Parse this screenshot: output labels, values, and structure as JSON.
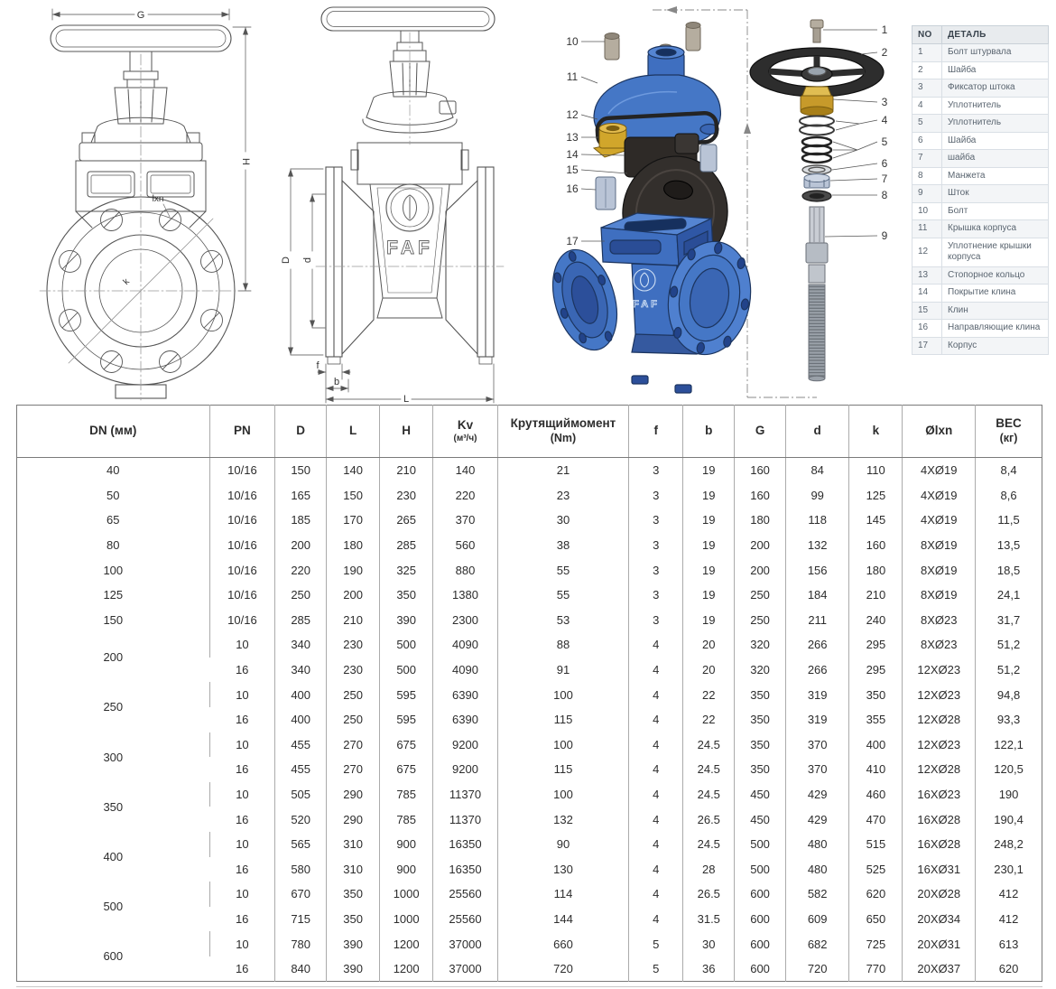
{
  "drawings": {
    "front": {
      "labels": {
        "g": "G",
        "h": "H",
        "lxn": "lxn",
        "k": "k"
      }
    },
    "side": {
      "labels": {
        "d_outer": "D",
        "d_inner": "d",
        "f": "f",
        "b": "b",
        "l": "L"
      },
      "logo": "FAF"
    }
  },
  "exploded": {
    "logo": "FAF",
    "callouts_left": [
      "10",
      "11",
      "12",
      "13",
      "14",
      "15",
      "16",
      "17"
    ],
    "callouts_right": [
      "1",
      "2",
      "3",
      "4",
      "5",
      "6",
      "7",
      "8",
      "9"
    ],
    "colors": {
      "body_blue": "#4577c6",
      "body_blue_dark": "#2f57a5",
      "outline_navy": "#1c3560",
      "handwheel_black": "#2d2d2d",
      "brass": "#c79a2a",
      "steel": "#b5ad9f",
      "silver_blue": "#b9c4d6"
    }
  },
  "parts_table": {
    "headers": [
      "NO",
      "ДЕТАЛЬ"
    ],
    "rows": [
      [
        "1",
        "Болт штурвала"
      ],
      [
        "2",
        "Шайба"
      ],
      [
        "3",
        "Фиксатор штока"
      ],
      [
        "4",
        "Уплотнитель"
      ],
      [
        "5",
        "Уплотнитель"
      ],
      [
        "6",
        "Шайба"
      ],
      [
        "7",
        "шайба"
      ],
      [
        "8",
        "Манжета"
      ],
      [
        "9",
        "Шток"
      ],
      [
        "10",
        "Болт"
      ],
      [
        "11",
        "Крышка корпуса"
      ],
      [
        "12",
        "Уплотнение крышки корпуса"
      ],
      [
        "13",
        "Стопорное кольцо"
      ],
      [
        "14",
        "Покрытие клина"
      ],
      [
        "15",
        "Клин"
      ],
      [
        "16",
        "Направляющие клина"
      ],
      [
        "17",
        "Корпус"
      ]
    ]
  },
  "dimensions_table": {
    "columns": [
      {
        "l1": "DN (мм)"
      },
      {
        "l1": "PN"
      },
      {
        "l1": "D"
      },
      {
        "l1": "L"
      },
      {
        "l1": "H"
      },
      {
        "l1": "Kv",
        "l2": "(м³/ч)",
        "small": true
      },
      {
        "l1": "Крутящиймомент",
        "l2": "(Nm)"
      },
      {
        "l1": "f"
      },
      {
        "l1": "b"
      },
      {
        "l1": "G"
      },
      {
        "l1": "d"
      },
      {
        "l1": "k"
      },
      {
        "l1": "Ølxn"
      },
      {
        "l1": "ВЕС",
        "l2": "(кг)"
      }
    ],
    "groups": [
      {
        "dn": "40",
        "rows": [
          [
            "10/16",
            "150",
            "140",
            "210",
            "140",
            "21",
            "3",
            "19",
            "160",
            "84",
            "110",
            "4XØ19",
            "8,4"
          ]
        ]
      },
      {
        "dn": "50",
        "rows": [
          [
            "10/16",
            "165",
            "150",
            "230",
            "220",
            "23",
            "3",
            "19",
            "160",
            "99",
            "125",
            "4XØ19",
            "8,6"
          ]
        ]
      },
      {
        "dn": "65",
        "rows": [
          [
            "10/16",
            "185",
            "170",
            "265",
            "370",
            "30",
            "3",
            "19",
            "180",
            "118",
            "145",
            "4XØ19",
            "11,5"
          ]
        ]
      },
      {
        "dn": "80",
        "rows": [
          [
            "10/16",
            "200",
            "180",
            "285",
            "560",
            "38",
            "3",
            "19",
            "200",
            "132",
            "160",
            "8XØ19",
            "13,5"
          ]
        ]
      },
      {
        "dn": "100",
        "rows": [
          [
            "10/16",
            "220",
            "190",
            "325",
            "880",
            "55",
            "3",
            "19",
            "200",
            "156",
            "180",
            "8XØ19",
            "18,5"
          ]
        ]
      },
      {
        "dn": "125",
        "rows": [
          [
            "10/16",
            "250",
            "200",
            "350",
            "1380",
            "55",
            "3",
            "19",
            "250",
            "184",
            "210",
            "8XØ19",
            "24,1"
          ]
        ]
      },
      {
        "dn": "150",
        "rows": [
          [
            "10/16",
            "285",
            "210",
            "390",
            "2300",
            "53",
            "3",
            "19",
            "250",
            "211",
            "240",
            "8XØ23",
            "31,7"
          ]
        ]
      },
      {
        "dn": "200",
        "rows": [
          [
            "10",
            "340",
            "230",
            "500",
            "4090",
            "88",
            "4",
            "20",
            "320",
            "266",
            "295",
            "8XØ23",
            "51,2"
          ],
          [
            "16",
            "340",
            "230",
            "500",
            "4090",
            "91",
            "4",
            "20",
            "320",
            "266",
            "295",
            "12XØ23",
            "51,2"
          ]
        ]
      },
      {
        "dn": "250",
        "rows": [
          [
            "10",
            "400",
            "250",
            "595",
            "6390",
            "100",
            "4",
            "22",
            "350",
            "319",
            "350",
            "12XØ23",
            "94,8"
          ],
          [
            "16",
            "400",
            "250",
            "595",
            "6390",
            "115",
            "4",
            "22",
            "350",
            "319",
            "355",
            "12XØ28",
            "93,3"
          ]
        ]
      },
      {
        "dn": "300",
        "rows": [
          [
            "10",
            "455",
            "270",
            "675",
            "9200",
            "100",
            "4",
            "24.5",
            "350",
            "370",
            "400",
            "12XØ23",
            "122,1"
          ],
          [
            "16",
            "455",
            "270",
            "675",
            "9200",
            "115",
            "4",
            "24.5",
            "350",
            "370",
            "410",
            "12XØ28",
            "120,5"
          ]
        ]
      },
      {
        "dn": "350",
        "rows": [
          [
            "10",
            "505",
            "290",
            "785",
            "11370",
            "100",
            "4",
            "24.5",
            "450",
            "429",
            "460",
            "16XØ23",
            "190"
          ],
          [
            "16",
            "520",
            "290",
            "785",
            "11370",
            "132",
            "4",
            "26.5",
            "450",
            "429",
            "470",
            "16XØ28",
            "190,4"
          ]
        ]
      },
      {
        "dn": "400",
        "rows": [
          [
            "10",
            "565",
            "310",
            "900",
            "16350",
            "90",
            "4",
            "24.5",
            "500",
            "480",
            "515",
            "16XØ28",
            "248,2"
          ],
          [
            "16",
            "580",
            "310",
            "900",
            "16350",
            "130",
            "4",
            "28",
            "500",
            "480",
            "525",
            "16XØ31",
            "230,1"
          ]
        ]
      },
      {
        "dn": "500",
        "rows": [
          [
            "10",
            "670",
            "350",
            "1000",
            "25560",
            "114",
            "4",
            "26.5",
            "600",
            "582",
            "620",
            "20XØ28",
            "412"
          ],
          [
            "16",
            "715",
            "350",
            "1000",
            "25560",
            "144",
            "4",
            "31.5",
            "600",
            "609",
            "650",
            "20XØ34",
            "412"
          ]
        ]
      },
      {
        "dn": "600",
        "rows": [
          [
            "10",
            "780",
            "390",
            "1200",
            "37000",
            "660",
            "5",
            "30",
            "600",
            "682",
            "725",
            "20XØ31",
            "613"
          ],
          [
            "16",
            "840",
            "390",
            "1200",
            "37000",
            "720",
            "5",
            "36",
            "600",
            "720",
            "770",
            "20XØ37",
            "620"
          ]
        ]
      }
    ]
  }
}
